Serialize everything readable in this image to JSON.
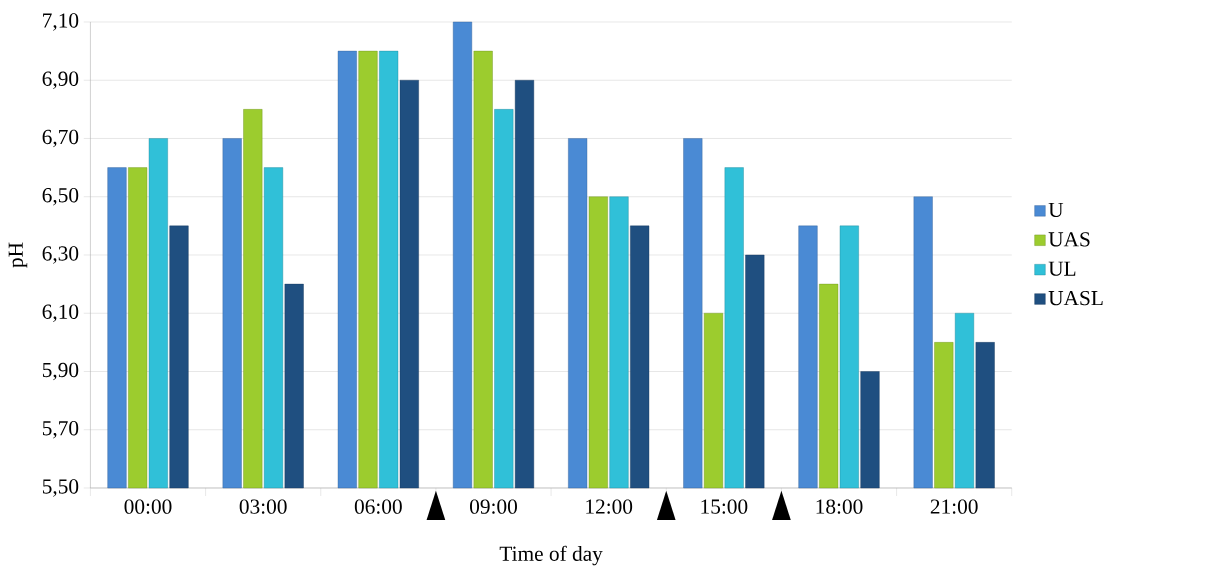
{
  "chart_data": {
    "type": "bar",
    "xlabel": "Time of day",
    "ylabel": "pH",
    "categories": [
      "00:00",
      "03:00",
      "06:00",
      "09:00",
      "12:00",
      "15:00",
      "18:00",
      "21:00"
    ],
    "series": [
      {
        "name": "U",
        "color": "#4a8ad4",
        "values": [
          6.6,
          6.7,
          7.0,
          7.1,
          6.7,
          6.7,
          6.4,
          6.5
        ]
      },
      {
        "name": "UAS",
        "color": "#9ccc2e",
        "values": [
          6.6,
          6.8,
          7.0,
          7.0,
          6.5,
          6.1,
          6.2,
          6.0
        ]
      },
      {
        "name": "UL",
        "color": "#30c0d8",
        "values": [
          6.7,
          6.6,
          7.0,
          6.8,
          6.5,
          6.6,
          6.4,
          6.1
        ]
      },
      {
        "name": "UASL",
        "color": "#1f4f80",
        "values": [
          6.4,
          6.2,
          6.9,
          6.9,
          6.4,
          6.3,
          5.9,
          6.0
        ]
      }
    ],
    "ylim": [
      5.5,
      7.1
    ],
    "yticks": [
      {
        "value": 5.5,
        "label": "5,50"
      },
      {
        "value": 5.7,
        "label": "5,70"
      },
      {
        "value": 5.9,
        "label": "5,90"
      },
      {
        "value": 6.1,
        "label": "6,10"
      },
      {
        "value": 6.3,
        "label": "6,30"
      },
      {
        "value": 6.5,
        "label": "6,50"
      },
      {
        "value": 6.7,
        "label": "6,70"
      },
      {
        "value": 6.9,
        "label": "6,90"
      },
      {
        "value": 7.1,
        "label": "7,10"
      }
    ],
    "grid": "y",
    "legend": "right"
  }
}
